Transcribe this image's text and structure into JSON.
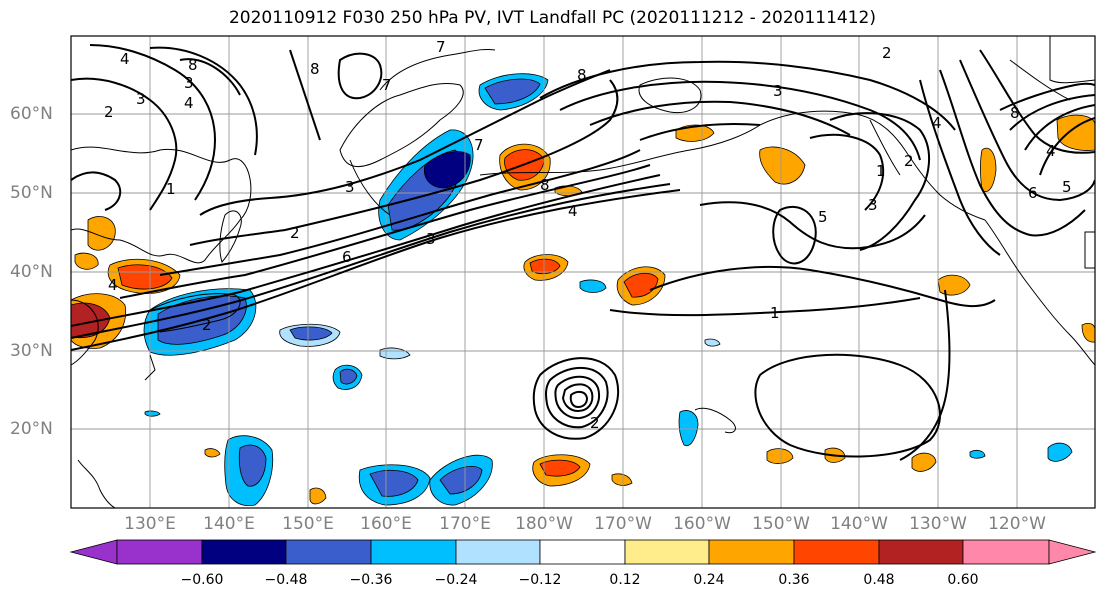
{
  "title": "2020110912 F030 250 hPa PV, IVT Landfall PC (2020111212 - 2020111412)",
  "map": {
    "lat_labels": [
      "60°N",
      "50°N",
      "40°N",
      "30°N",
      "20°N"
    ],
    "lon_labels": [
      "130°E",
      "140°E",
      "150°E",
      "160°E",
      "170°E",
      "180°W",
      "170°W",
      "160°W",
      "150°W",
      "140°W",
      "130°W",
      "120°W"
    ],
    "contour_labels": [
      "4",
      "3",
      "8",
      "2",
      "3",
      "4",
      "8",
      "7",
      "1",
      "7",
      "8",
      "8",
      "3",
      "2",
      "7",
      "3",
      "4",
      "5",
      "3",
      "1",
      "2",
      "6",
      "3",
      "4",
      "6",
      "5",
      "4",
      "8",
      "2",
      "4",
      "2",
      "1",
      "2"
    ]
  },
  "colorbar": {
    "tick_labels": [
      "−0.60",
      "−0.48",
      "−0.36",
      "−0.24",
      "−0.12",
      "0.12",
      "0.24",
      "0.36",
      "0.48",
      "0.60"
    ],
    "colors": [
      "#9932cc",
      "#000080",
      "#3a5fcd",
      "#00bfff",
      "#b0e2ff",
      "#ffffff",
      "#ffec8b",
      "#ffa500",
      "#ff4500",
      "#b22222",
      "#ff88aa"
    ]
  }
}
